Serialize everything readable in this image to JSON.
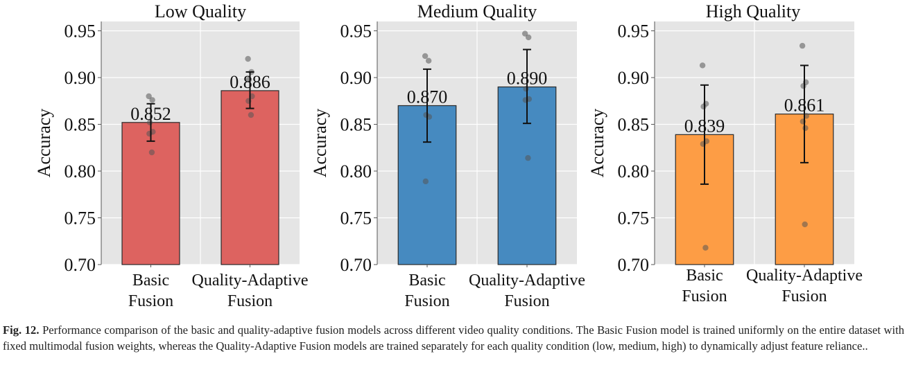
{
  "chart_data": [
    {
      "type": "bar",
      "title": "Low Quality",
      "ylabel": "Accuracy",
      "xlabel": "",
      "ylim": [
        0.7,
        0.96
      ],
      "yticks": [
        "0.70",
        "0.75",
        "0.80",
        "0.85",
        "0.90",
        "0.95"
      ],
      "grid": true,
      "color": "#dd6360",
      "categories": [
        [
          "Basic",
          "Fusion"
        ],
        [
          "Quality-Adaptive",
          "Fusion"
        ]
      ],
      "values": [
        0.852,
        0.886
      ],
      "value_labels": [
        "0.852",
        "0.886"
      ],
      "errors": [
        [
          0.832,
          0.872
        ],
        [
          0.867,
          0.906
        ]
      ],
      "points": [
        [
          0.88,
          0.876,
          0.852,
          0.842,
          0.84,
          0.82
        ],
        [
          0.92,
          0.906,
          0.898,
          0.88,
          0.875,
          0.86
        ]
      ]
    },
    {
      "type": "bar",
      "title": "Medium Quality",
      "ylabel": "Accuracy",
      "xlabel": "",
      "ylim": [
        0.7,
        0.96
      ],
      "yticks": [
        "0.70",
        "0.75",
        "0.80",
        "0.85",
        "0.90",
        "0.95"
      ],
      "grid": true,
      "color": "#468ac0",
      "categories": [
        [
          "Basic",
          "Fusion"
        ],
        [
          "Quality-Adaptive",
          "Fusion"
        ]
      ],
      "values": [
        0.87,
        0.89
      ],
      "value_labels": [
        "0.870",
        "0.890"
      ],
      "errors": [
        [
          0.831,
          0.909
        ],
        [
          0.851,
          0.93
        ]
      ],
      "points": [
        [
          0.923,
          0.918,
          0.86,
          0.858,
          0.789
        ],
        [
          0.947,
          0.943,
          0.888,
          0.877,
          0.876,
          0.814
        ]
      ]
    },
    {
      "type": "bar",
      "title": "High Quality",
      "ylabel": "Accuracy",
      "xlabel": "",
      "ylim": [
        0.7,
        0.96
      ],
      "yticks": [
        "0.70",
        "0.75",
        "0.80",
        "0.85",
        "0.90",
        "0.95"
      ],
      "grid": true,
      "color": "#fd9d45",
      "categories": [
        [
          "Basic",
          "Fusion"
        ],
        [
          "Quality-Adaptive",
          "Fusion"
        ]
      ],
      "values": [
        0.839,
        0.861
      ],
      "value_labels": [
        "0.839",
        "0.861"
      ],
      "errors": [
        [
          0.786,
          0.892
        ],
        [
          0.809,
          0.913
        ]
      ],
      "points": [
        [
          0.913,
          0.872,
          0.869,
          0.832,
          0.829,
          0.718
        ],
        [
          0.934,
          0.895,
          0.891,
          0.859,
          0.853,
          0.846,
          0.743
        ]
      ]
    }
  ],
  "caption": {
    "label": "Fig. 12.",
    "text": "Performance comparison of the basic and quality-adaptive fusion models across different video quality conditions. The Basic Fusion model is trained uniformly on the entire dataset with fixed multimodal fusion weights, whereas the Quality-Adaptive Fusion models are trained separately for each quality condition (low, medium, high) to dynamically adjust feature reliance.."
  }
}
